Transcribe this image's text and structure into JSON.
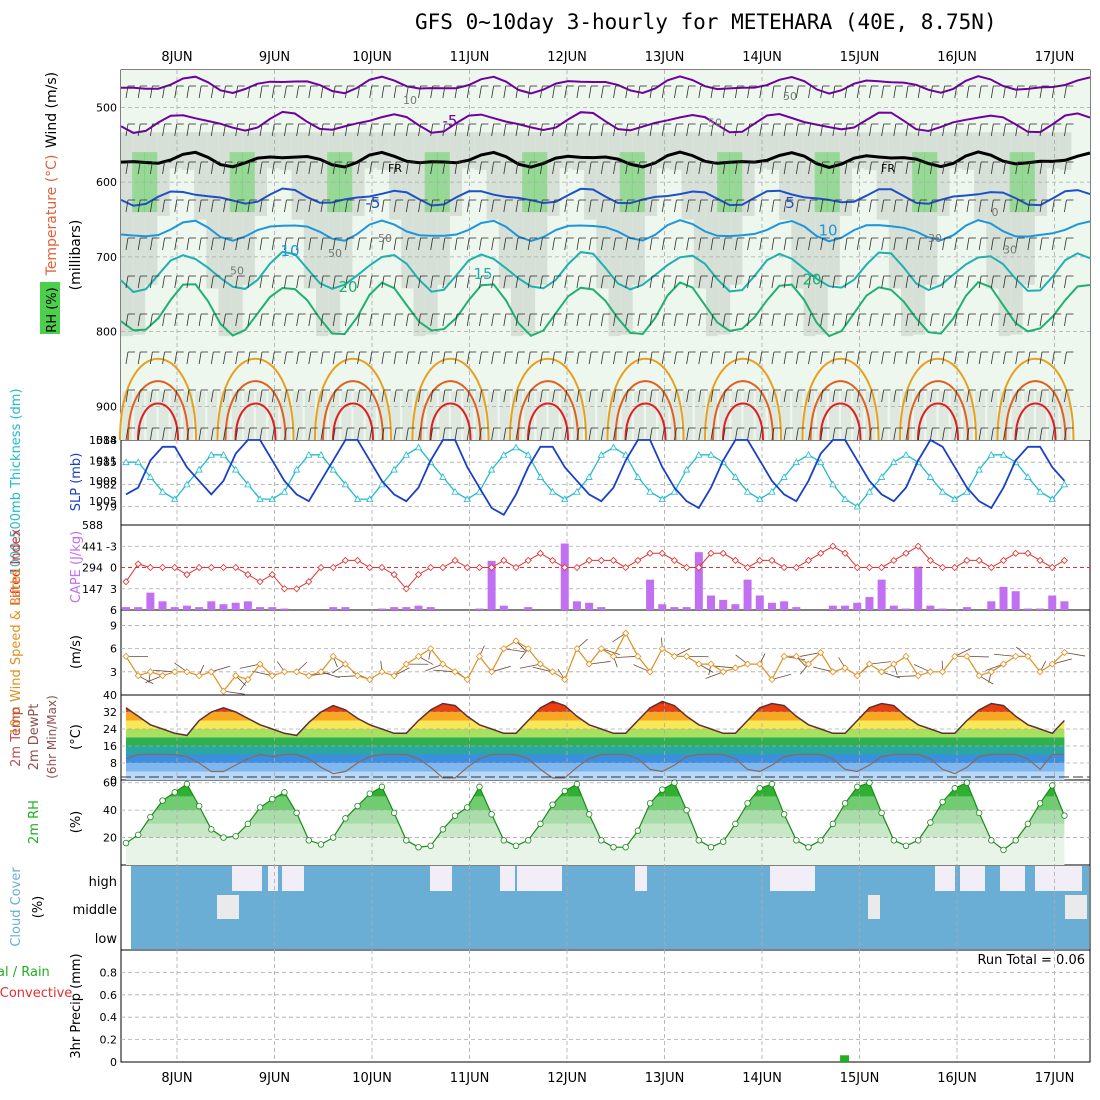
{
  "title": "GFS 0~10day 3-hourly for METEHARA (40E, 8.75N)",
  "dates": [
    "8JUN",
    "9JUN",
    "10JUN",
    "11JUN",
    "12JUN",
    "13JUN",
    "14JUN",
    "15JUN",
    "16JUN",
    "17JUN"
  ],
  "colors": {
    "temp_lines": [
      "#7000a0",
      "#1e50c8",
      "#1e96dc",
      "#20b0b0",
      "#20b070",
      "#e6a020",
      "#e06020",
      "#e02020"
    ],
    "thickness": "#22bbcc",
    "slp": "#1a40c8",
    "li": "#e03030",
    "cape": "#c070f0",
    "wind": "#e09020",
    "temp": "#603030",
    "rh": "#20b020",
    "cloud": "#6aaed6",
    "precip": "#20b020"
  },
  "chart_data": [
    {
      "type": "contour",
      "name": "upper-air",
      "labels": {
        "wind": "Wind (m/s)",
        "temperature": "Temperature (°C)",
        "rh": "RH (%)",
        "unit": "(millibars)"
      },
      "y_ticks": [
        500,
        600,
        700,
        800,
        900
      ],
      "ylim": [
        945,
        450
      ],
      "temp_contour_labels": [
        "-5",
        "FR",
        "FR",
        "-5",
        "5",
        "10",
        "10",
        "15",
        "20",
        "20"
      ],
      "rh_contour_labels": [
        "10",
        "50",
        "50",
        "50",
        "50",
        "50",
        "0",
        "30",
        "30"
      ]
    },
    {
      "type": "line",
      "name": "thickness-slp",
      "labels": {
        "thickness": "1000-500mb Thickness (dm)",
        "slp": "SLP (mb)"
      },
      "left_ticks": [
        579,
        582,
        585,
        588
      ],
      "right_ticks": [
        1005,
        1008,
        1011,
        1014
      ],
      "series": [
        {
          "name": "SLP",
          "axis": "right",
          "values": [
            1006,
            1007,
            1011,
            1013,
            1013,
            1010,
            1008,
            1006,
            1008,
            1012,
            1014,
            1014,
            1011,
            1008,
            1006,
            1005,
            1008,
            1011,
            1014,
            1014,
            1011,
            1008,
            1006,
            1005,
            1007,
            1011,
            1014,
            1014,
            1010,
            1007,
            1004,
            1003,
            1006,
            1010,
            1013,
            1013,
            1010,
            1008,
            1006,
            1005,
            1007,
            1011,
            1014,
            1014,
            1010,
            1007,
            1005,
            1004,
            1007,
            1011,
            1014,
            1014,
            1011,
            1008,
            1006,
            1005,
            1008,
            1012,
            1014,
            1014,
            1011,
            1008,
            1006,
            1005,
            1007,
            1011,
            1014,
            1013,
            1010,
            1007,
            1005,
            1004,
            1007,
            1011,
            1013,
            1013,
            1010,
            1008
          ]
        },
        {
          "name": "Thickness",
          "axis": "left",
          "values": [
            585,
            585,
            583,
            581,
            580,
            582,
            584,
            586,
            586,
            584,
            582,
            580,
            580,
            581,
            584,
            586,
            586,
            584,
            582,
            580,
            580,
            582,
            584,
            586,
            587,
            585,
            583,
            581,
            580,
            581,
            584,
            586,
            587,
            586,
            583,
            581,
            580,
            581,
            583,
            586,
            587,
            586,
            583,
            581,
            580,
            581,
            584,
            586,
            586,
            585,
            583,
            581,
            580,
            581,
            583,
            585,
            586,
            585,
            582,
            580,
            579,
            581,
            583,
            585,
            586,
            585,
            583,
            581,
            580,
            581,
            584,
            586,
            586,
            585,
            583,
            581,
            580,
            582
          ]
        }
      ]
    },
    {
      "type": "bar+line",
      "name": "cape-li",
      "labels": {
        "li": "Lifted Index",
        "cape": "CAPE (J/kg)"
      },
      "left_ticks": [
        "-3",
        "0",
        "3",
        "6"
      ],
      "right_ticks": [
        "147",
        "294",
        "441",
        "588"
      ],
      "series": [
        {
          "name": "CAPE",
          "values": [
            20,
            20,
            120,
            60,
            20,
            30,
            20,
            60,
            40,
            50,
            60,
            20,
            20,
            10,
            0,
            0,
            0,
            20,
            20,
            0,
            0,
            10,
            20,
            20,
            30,
            20,
            0,
            0,
            0,
            10,
            340,
            30,
            0,
            20,
            0,
            0,
            460,
            60,
            50,
            20,
            0,
            0,
            0,
            210,
            40,
            20,
            20,
            400,
            100,
            70,
            40,
            210,
            100,
            50,
            60,
            20,
            0,
            0,
            30,
            30,
            50,
            90,
            210,
            30,
            10,
            300,
            30,
            10,
            0,
            20,
            0,
            60,
            160,
            130,
            10,
            10,
            100,
            60
          ]
        },
        {
          "name": "LI",
          "values": [
            2,
            -0.5,
            0,
            0,
            0,
            1,
            0,
            0,
            0,
            0,
            1,
            2,
            1,
            3,
            3,
            2,
            0,
            0,
            -1,
            -1,
            0,
            0,
            1,
            3,
            1,
            0,
            0,
            -1,
            0,
            0,
            0,
            -1,
            0,
            -1,
            -2,
            -1,
            0,
            0,
            -1,
            -1,
            -1,
            0,
            -1,
            -2,
            -2,
            -1,
            0,
            0,
            -2,
            -2,
            -1,
            0,
            -1,
            -1,
            0,
            0,
            -1,
            -2,
            -3,
            -2,
            0,
            0,
            0,
            -1,
            -2,
            -3,
            -1,
            0,
            0,
            -1,
            -1,
            0,
            -1,
            -2,
            -2,
            -1,
            0,
            -1
          ]
        }
      ]
    },
    {
      "type": "line",
      "name": "wind",
      "labels": {
        "wind": "10m Wind Speed & Barbs",
        "unit": "(m/s)"
      },
      "y_ticks": [
        3,
        6,
        9
      ],
      "ylim": [
        0,
        11
      ],
      "series": [
        {
          "name": "Speed",
          "values": [
            5,
            2.5,
            3,
            2.5,
            3,
            3,
            2.5,
            3,
            0.5,
            2.5,
            2,
            4,
            2.5,
            3,
            3,
            2.5,
            3,
            5,
            4,
            2.5,
            2,
            3,
            2.5,
            4,
            5,
            6,
            4,
            3,
            2,
            5,
            3,
            6,
            7,
            6,
            4,
            3,
            2,
            6,
            4,
            6,
            5,
            8,
            5,
            3,
            6,
            5,
            5,
            4,
            4,
            3,
            3.5,
            4,
            4,
            2,
            5,
            5,
            4,
            5.5,
            3,
            3.5,
            2.5,
            4,
            3,
            4,
            5,
            2.5,
            3,
            3,
            5,
            5,
            2.5,
            3,
            4,
            5,
            5,
            3,
            4,
            5.5
          ]
        }
      ]
    },
    {
      "type": "area+line",
      "name": "temperature",
      "labels": {
        "temp": "2m Temp",
        "dewpt": "2m DewPt",
        "minmax": "(6hr Min/Max)",
        "unit": "(°C)"
      },
      "y_ticks": [
        0,
        8,
        16,
        24,
        32,
        40
      ],
      "ylim": [
        0,
        40
      ],
      "series": [
        {
          "name": "Temp",
          "values": [
            34,
            30,
            26,
            24,
            22,
            21,
            28,
            32,
            34,
            32,
            29,
            26,
            24,
            22,
            21,
            27,
            32,
            35,
            33,
            29,
            26,
            24,
            22,
            22,
            28,
            33,
            36,
            35,
            30,
            26,
            24,
            22,
            22,
            28,
            34,
            37,
            35,
            30,
            26,
            24,
            22,
            22,
            28,
            34,
            37,
            35,
            30,
            26,
            24,
            22,
            22,
            28,
            34,
            36,
            35,
            30,
            26,
            24,
            22,
            22,
            28,
            34,
            36,
            35,
            30,
            26,
            24,
            22,
            22,
            28,
            33,
            36,
            35,
            30,
            26,
            24,
            22,
            28
          ]
        },
        {
          "name": "DewPt",
          "values": [
            10,
            12,
            12,
            12,
            12,
            11,
            8,
            4,
            4,
            7,
            10,
            12,
            11,
            12,
            12,
            10,
            6,
            3,
            4,
            8,
            11,
            12,
            12,
            12,
            10,
            6,
            1,
            1,
            6,
            10,
            12,
            12,
            12,
            10,
            5,
            1,
            1,
            6,
            10,
            12,
            12,
            12,
            10,
            5,
            4,
            7,
            11,
            12,
            12,
            12,
            10,
            5,
            4,
            7,
            11,
            12,
            12,
            12,
            10,
            5,
            4,
            7,
            11,
            12,
            12,
            12,
            10,
            5,
            3,
            6,
            11,
            12,
            12,
            12,
            10,
            5,
            12,
            12
          ]
        }
      ]
    },
    {
      "type": "area",
      "name": "rh",
      "labels": {
        "rh": "2m RH",
        "unit": "(%)"
      },
      "y_ticks": [
        20,
        40,
        60
      ],
      "ylim": [
        0,
        62
      ],
      "series": [
        {
          "name": "RH",
          "values": [
            16,
            22,
            35,
            47,
            53,
            59,
            43,
            26,
            20,
            21,
            30,
            42,
            48,
            53,
            38,
            18,
            15,
            20,
            34,
            43,
            52,
            57,
            38,
            18,
            13,
            14,
            26,
            36,
            42,
            57,
            37,
            18,
            14,
            18,
            30,
            44,
            54,
            59,
            37,
            18,
            13,
            13,
            25,
            45,
            55,
            60,
            40,
            18,
            13,
            17,
            30,
            45,
            56,
            59,
            37,
            18,
            13,
            18,
            30,
            45,
            57,
            60,
            38,
            18,
            14,
            18,
            31,
            46,
            56,
            60,
            38,
            18,
            11,
            18,
            30,
            45,
            58,
            36
          ]
        }
      ]
    },
    {
      "type": "heatmap",
      "name": "cloud",
      "labels": {
        "cloud": "Cloud Cover",
        "unit": "(%)",
        "high": "high",
        "middle": "middle",
        "low": "low"
      }
    },
    {
      "type": "bar",
      "name": "precip",
      "labels": {
        "total": "Total / Rain",
        "convective": "Convective",
        "unit": "3hr Precip (mm)",
        "run_total": "Run Total = 0.06"
      },
      "y_ticks": [
        "0",
        "0.2",
        "0.4",
        "0.6",
        "0.8"
      ],
      "ylim": [
        0,
        1
      ],
      "series": [
        {
          "name": "Total",
          "values": [
            0,
            0,
            0,
            0,
            0,
            0,
            0,
            0,
            0,
            0,
            0,
            0,
            0,
            0,
            0,
            0,
            0,
            0,
            0,
            0,
            0,
            0,
            0,
            0,
            0,
            0,
            0,
            0,
            0,
            0,
            0,
            0,
            0,
            0,
            0,
            0,
            0,
            0,
            0,
            0,
            0,
            0,
            0,
            0,
            0,
            0,
            0,
            0,
            0,
            0,
            0,
            0,
            0,
            0,
            0,
            0,
            0,
            0,
            0,
            0.06,
            0,
            0,
            0,
            0,
            0,
            0,
            0,
            0,
            0,
            0,
            0,
            0,
            0,
            0,
            0,
            0,
            0,
            0
          ]
        }
      ]
    }
  ]
}
